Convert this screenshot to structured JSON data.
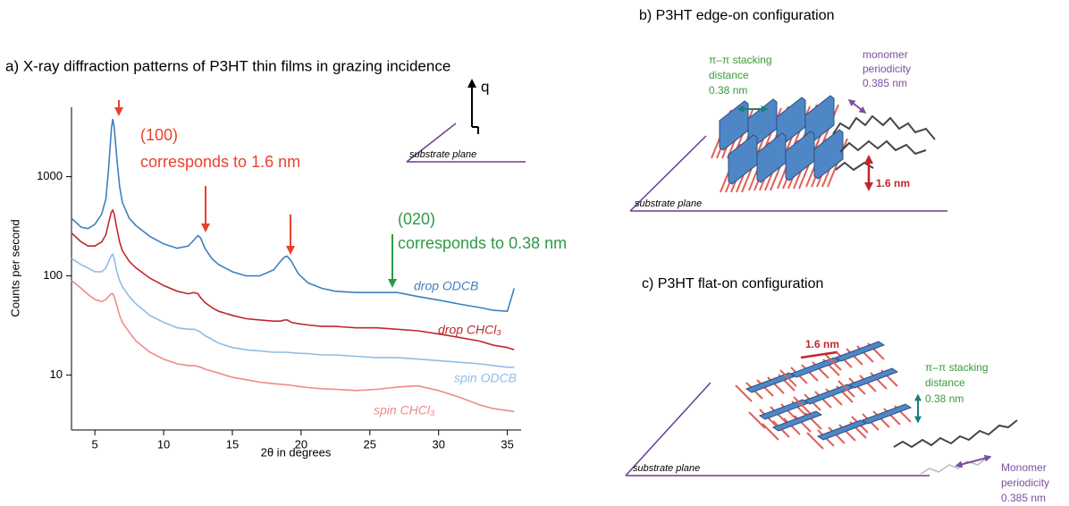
{
  "chart_data": {
    "type": "line",
    "title": "a) X-ray diffraction patterns of P3HT thin films in grazing incidence",
    "x_label": "2θ in degrees",
    "y_label": "Counts per second",
    "yscale": "log",
    "xlim": [
      3.3,
      36
    ],
    "ylim": [
      2.8,
      5000
    ],
    "xticks": [
      5,
      10,
      15,
      20,
      25,
      30,
      35
    ],
    "yticks": [
      10,
      100,
      1000
    ],
    "x": [
      3.3,
      4,
      4.5,
      5,
      5.5,
      5.8,
      6.0,
      6.2,
      6.3,
      6.4,
      6.6,
      6.8,
      7.0,
      7.5,
      8,
      9,
      10,
      11,
      11.8,
      12.2,
      12.5,
      12.7,
      13.0,
      13.5,
      14,
      15,
      16,
      17,
      18,
      18.5,
      18.8,
      19.0,
      19.3,
      19.8,
      20.5,
      21.5,
      22.5,
      24,
      25.5,
      27,
      28.5,
      30,
      31.5,
      33,
      34,
      35,
      35.5
    ],
    "series": [
      {
        "name": "drop ODCB",
        "color": "#3f7fbf",
        "values": [
          380,
          310,
          300,
          330,
          420,
          600,
          1200,
          3000,
          3800,
          3200,
          1500,
          800,
          550,
          380,
          320,
          250,
          210,
          190,
          200,
          230,
          255,
          240,
          190,
          150,
          130,
          110,
          100,
          100,
          115,
          140,
          155,
          158,
          140,
          105,
          85,
          75,
          70,
          68,
          68,
          68,
          62,
          57,
          52,
          48,
          45,
          44,
          75
        ]
      },
      {
        "name": "drop CHCl₃",
        "color": "#c1272d",
        "values": [
          270,
          220,
          200,
          200,
          220,
          260,
          340,
          440,
          460,
          420,
          300,
          220,
          180,
          140,
          120,
          95,
          80,
          70,
          66,
          68,
          66,
          60,
          54,
          48,
          44,
          40,
          37,
          36,
          35,
          35,
          36,
          36,
          34,
          33,
          32,
          31,
          31,
          30,
          30,
          29,
          28,
          26,
          24,
          22,
          20,
          19,
          18
        ]
      },
      {
        "name": "spin ODCB",
        "color": "#8ebde6",
        "values": [
          150,
          130,
          120,
          110,
          110,
          120,
          140,
          160,
          165,
          150,
          110,
          90,
          78,
          62,
          52,
          40,
          34,
          30,
          29,
          29,
          28,
          27,
          25,
          23,
          21,
          19,
          18,
          17.5,
          17,
          17,
          17,
          17,
          16.8,
          16.6,
          16.5,
          16,
          16,
          15.5,
          15,
          15,
          14.5,
          14,
          13.5,
          13,
          12.5,
          12,
          12
        ]
      },
      {
        "name": "spin CHCl₃",
        "color": "#ef8a8a",
        "values": [
          90,
          75,
          65,
          58,
          55,
          58,
          62,
          66,
          66,
          62,
          50,
          40,
          34,
          27,
          22,
          17,
          14.5,
          13,
          12.5,
          12.5,
          12.2,
          12,
          11.5,
          11,
          10.5,
          9.5,
          9,
          8.5,
          8.2,
          8.1,
          8,
          8,
          7.9,
          7.7,
          7.5,
          7.3,
          7.2,
          7,
          7.2,
          7.6,
          7.8,
          7,
          6,
          5,
          4.6,
          4.4,
          4.3
        ]
      }
    ],
    "annotations": [
      "(100)",
      "corresponds to 1.6 nm",
      "(020)",
      "corresponds to 0.38 nm"
    ],
    "inset": {
      "axis_label": "q",
      "plane_label": "substrate plane"
    }
  },
  "diagrams": [
    {
      "title": "b) P3HT edge-on configuration",
      "stacking": [
        "π–π stacking",
        "distance",
        "0.38 nm"
      ],
      "periodicity": [
        "monomer",
        "periodicity",
        "0.385 nm"
      ],
      "lamella": "1.6 nm",
      "plane_label": "substrate plane"
    },
    {
      "title": "c) P3HT flat-on configuration",
      "stacking": [
        "π–π stacking",
        "distance",
        "0.38 nm"
      ],
      "periodicity": [
        "Monomer",
        "periodicity",
        "0.385 nm"
      ],
      "lamella": "1.6 nm",
      "plane_label": "substrate plane"
    }
  ]
}
